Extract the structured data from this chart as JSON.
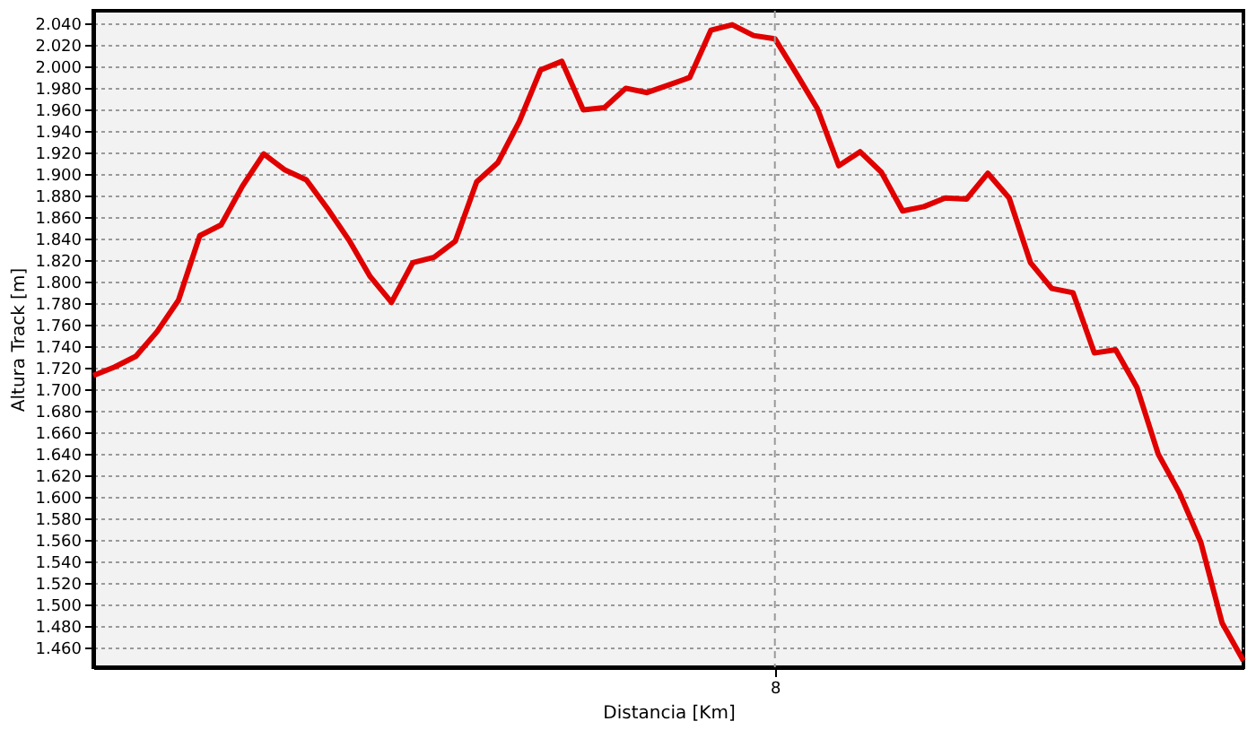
{
  "chart_data": {
    "type": "line",
    "xlabel": "Distancia [Km]",
    "ylabel": "Altura Track [m]",
    "categories": [
      null,
      null,
      null,
      null,
      null,
      null,
      null,
      null,
      null,
      null,
      null,
      null,
      null,
      null,
      null,
      null,
      null,
      null,
      null,
      null,
      null,
      null,
      null,
      null,
      null,
      null,
      null,
      null,
      null,
      null,
      null,
      null,
      "8",
      null,
      null,
      null,
      null,
      null,
      null,
      null,
      null,
      null,
      null,
      null,
      null,
      null,
      null,
      null,
      null,
      null,
      null,
      null,
      null,
      null,
      null
    ],
    "series": [
      {
        "color": "#e00000",
        "values": [
          1713,
          1721,
          1731,
          1754,
          1783,
          1843,
          1853,
          1889,
          1919,
          1904,
          1895,
          1868,
          1839,
          1805,
          1781,
          1818,
          1823,
          1838,
          1893,
          1911,
          1949,
          1997,
          2005,
          1960,
          1962,
          1980,
          1976,
          1983,
          1990,
          2034,
          2039,
          2029,
          2026,
          1994,
          1961,
          1908,
          1921,
          1902,
          1866,
          1870,
          1878,
          1877,
          1901,
          1878,
          1818,
          1794,
          1790,
          1734,
          1737,
          1702,
          1640,
          1604,
          1558,
          1483,
          1448
        ]
      }
    ],
    "ylim": [
      1442,
      2052
    ],
    "yticks": [
      {
        "value": 1460,
        "label": "1.460"
      },
      {
        "value": 1480,
        "label": "1.480"
      },
      {
        "value": 1500,
        "label": "1.500"
      },
      {
        "value": 1520,
        "label": "1.520"
      },
      {
        "value": 1540,
        "label": "1.540"
      },
      {
        "value": 1560,
        "label": "1.560"
      },
      {
        "value": 1580,
        "label": "1.580"
      },
      {
        "value": 1600,
        "label": "1.600"
      },
      {
        "value": 1620,
        "label": "1.620"
      },
      {
        "value": 1640,
        "label": "1.640"
      },
      {
        "value": 1660,
        "label": "1.660"
      },
      {
        "value": 1680,
        "label": "1.680"
      },
      {
        "value": 1700,
        "label": "1.700"
      },
      {
        "value": 1720,
        "label": "1.720"
      },
      {
        "value": 1740,
        "label": "1.740"
      },
      {
        "value": 1760,
        "label": "1.760"
      },
      {
        "value": 1780,
        "label": "1.780"
      },
      {
        "value": 1800,
        "label": "1.800"
      },
      {
        "value": 1820,
        "label": "1.820"
      },
      {
        "value": 1840,
        "label": "1.840"
      },
      {
        "value": 1860,
        "label": "1.860"
      },
      {
        "value": 1880,
        "label": "1.880"
      },
      {
        "value": 1900,
        "label": "1.900"
      },
      {
        "value": 1920,
        "label": "1.920"
      },
      {
        "value": 1940,
        "label": "1.940"
      },
      {
        "value": 1960,
        "label": "1.960"
      },
      {
        "value": 1980,
        "label": "1.980"
      },
      {
        "value": 2000,
        "label": "2.000"
      },
      {
        "value": 2020,
        "label": "2.020"
      },
      {
        "value": 2040,
        "label": "2.040"
      }
    ],
    "grid": "y",
    "ref_lines": [
      {
        "axis": "x",
        "value": "8",
        "line_style": "dashed",
        "color": "#999999"
      }
    ],
    "marker": "none",
    "line_style": "solid"
  }
}
